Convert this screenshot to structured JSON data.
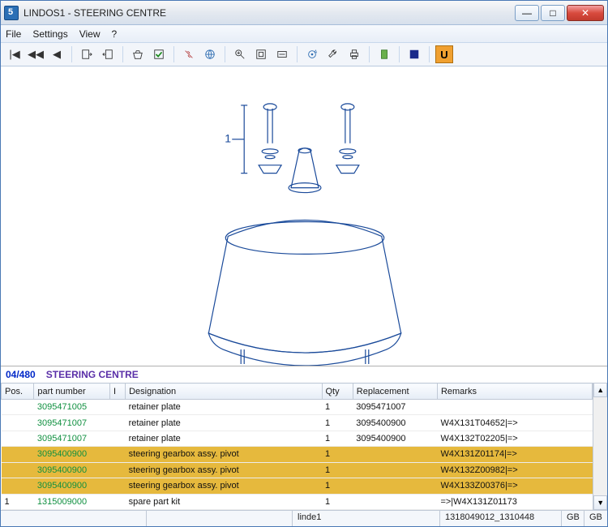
{
  "window": {
    "title": "LINDOS1 - STEERING CENTRE"
  },
  "menu": {
    "file": "File",
    "settings": "Settings",
    "view": "View",
    "help": "?"
  },
  "toolbar_icons": [
    "first-icon",
    "prev-fast-icon",
    "prev-icon",
    "export-icon",
    "import-icon",
    "basket-icon",
    "check-icon",
    "link-off-icon",
    "globe-icon",
    "zoom-in-icon",
    "fit-page-icon",
    "fit-width-icon",
    "target-icon",
    "wrench-icon",
    "print-icon",
    "doc-icon",
    "flag-icon",
    "u-icon"
  ],
  "viewer": {
    "callout_1": "1"
  },
  "section": {
    "page": "04/480",
    "name": "STEERING CENTRE"
  },
  "table": {
    "headers": {
      "pos": "Pos.",
      "pn": "part number",
      "i": "I",
      "des": "Designation",
      "qty": "Qty",
      "repl": "Replacement",
      "rem": "Remarks"
    },
    "col_widths": [
      "38px",
      "88px",
      "18px",
      "228px",
      "36px",
      "98px",
      "180px"
    ],
    "rows": [
      {
        "pos": "",
        "pn": "3095471005",
        "i": "",
        "des": "retainer plate",
        "qty": "1",
        "repl": "3095471007",
        "rem": "",
        "hl": false
      },
      {
        "pos": "",
        "pn": "3095471007",
        "i": "",
        "des": "retainer plate",
        "qty": "1",
        "repl": "3095400900",
        "rem": "W4X131T04652|=>",
        "hl": false
      },
      {
        "pos": "",
        "pn": "3095471007",
        "i": "",
        "des": "retainer plate",
        "qty": "1",
        "repl": "3095400900",
        "rem": "W4X132T02205|=>",
        "hl": false
      },
      {
        "pos": "",
        "pn": "3095400900",
        "i": "",
        "des": "steering gearbox assy. pivot",
        "qty": "1",
        "repl": "",
        "rem": "W4X131Z01174|=>",
        "hl": true
      },
      {
        "pos": "",
        "pn": "3095400900",
        "i": "",
        "des": "steering gearbox assy. pivot",
        "qty": "1",
        "repl": "",
        "rem": "W4X132Z00982|=>",
        "hl": true
      },
      {
        "pos": "",
        "pn": "3095400900",
        "i": "",
        "des": "steering gearbox assy. pivot",
        "qty": "1",
        "repl": "",
        "rem": "W4X133Z00376|=>",
        "hl": true
      },
      {
        "pos": "1",
        "pn": "1315009000",
        "i": "",
        "des": "spare part kit",
        "qty": "1",
        "repl": "",
        "rem": "=>|W4X131Z01173",
        "hl": false
      }
    ]
  },
  "status": {
    "s1": "",
    "s2": "",
    "s3": "linde1",
    "s4": "1318049012_1310448",
    "s5": "GB",
    "s6": "GB"
  },
  "colors": {
    "highlight": "#e6b93d",
    "partnum": "#109040",
    "page": "#0028c8",
    "section": "#5a2fa8"
  }
}
